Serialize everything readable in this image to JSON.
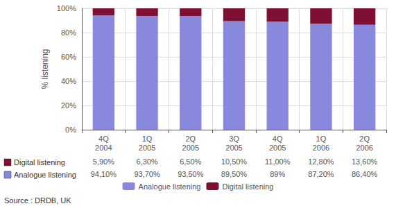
{
  "chart_data": {
    "type": "bar",
    "categories": [
      "4Q\n2004",
      "1Q\n2005",
      "2Q\n2005",
      "3Q\n2005",
      "4Q\n2005",
      "1Q\n2006",
      "2Q\n2006"
    ],
    "series": [
      {
        "name": "Analogue listening",
        "color": "#8888dd",
        "values": [
          94.1,
          93.7,
          93.5,
          89.5,
          89.0,
          87.2,
          86.4
        ],
        "value_labels": [
          "94,10%",
          "93,70%",
          "93,50%",
          "89,50%",
          "89%",
          "87,20%",
          "86,40%"
        ]
      },
      {
        "name": "Digital listening",
        "color": "#7f1035",
        "values": [
          5.9,
          6.3,
          6.5,
          10.5,
          11.0,
          12.8,
          13.6
        ],
        "value_labels": [
          "5,90%",
          "6,30%",
          "6,50%",
          "10,50%",
          "11,00%",
          "12,80%",
          "13,60%"
        ]
      }
    ],
    "ylabel": "% listening",
    "ylim": [
      0,
      100
    ],
    "yticks": [
      {
        "value": 0,
        "label": "0%"
      },
      {
        "value": 20,
        "label": "20%"
      },
      {
        "value": 40,
        "label": "40%"
      },
      {
        "value": 60,
        "label": "60%"
      },
      {
        "value": 80,
        "label": "80%"
      },
      {
        "value": 100,
        "label": "100%"
      }
    ],
    "stacked": true,
    "grid": true,
    "legend": "bottom",
    "annotations": [
      "Source : DRDB, UK"
    ]
  }
}
